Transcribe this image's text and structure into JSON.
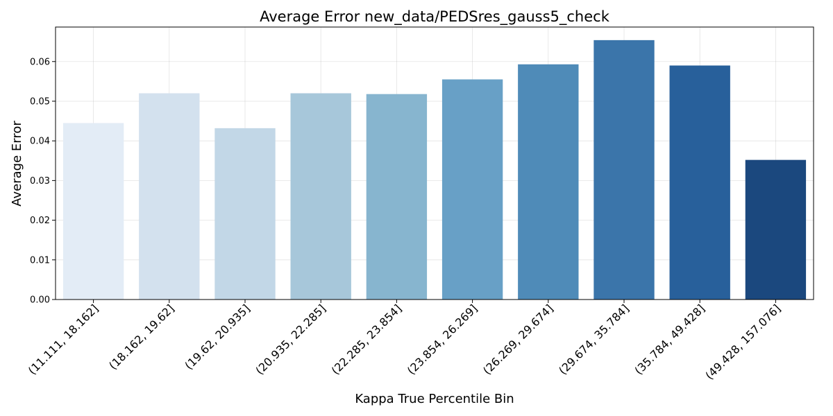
{
  "chart_data": {
    "type": "bar",
    "title": "Average Error new_data/PEDSres_gauss5_check",
    "xlabel": "Kappa True Percentile Bin",
    "ylabel": "Average Error",
    "categories": [
      "(11.111, 18.162]",
      "(18.162, 19.62]",
      "(19.62, 20.935]",
      "(20.935, 22.285]",
      "(22.285, 23.854]",
      "(23.854, 26.269]",
      "(26.269, 29.674]",
      "(29.674, 35.784]",
      "(35.784, 49.428]",
      "(49.428, 157.076]"
    ],
    "values": [
      0.0445,
      0.052,
      0.0432,
      0.052,
      0.0518,
      0.0555,
      0.0593,
      0.0654,
      0.059,
      0.0352
    ],
    "ylim": [
      0,
      0.0687
    ],
    "yticks": [
      "0.00",
      "0.01",
      "0.02",
      "0.03",
      "0.04",
      "0.05",
      "0.06"
    ],
    "grid": true,
    "colors": [
      "#e3ecf6",
      "#d3e1ee",
      "#c2d7e7",
      "#a7c7da",
      "#87b5cf",
      "#68a0c6",
      "#4f8bb8",
      "#3b75aa",
      "#28609b",
      "#1b487e"
    ]
  }
}
